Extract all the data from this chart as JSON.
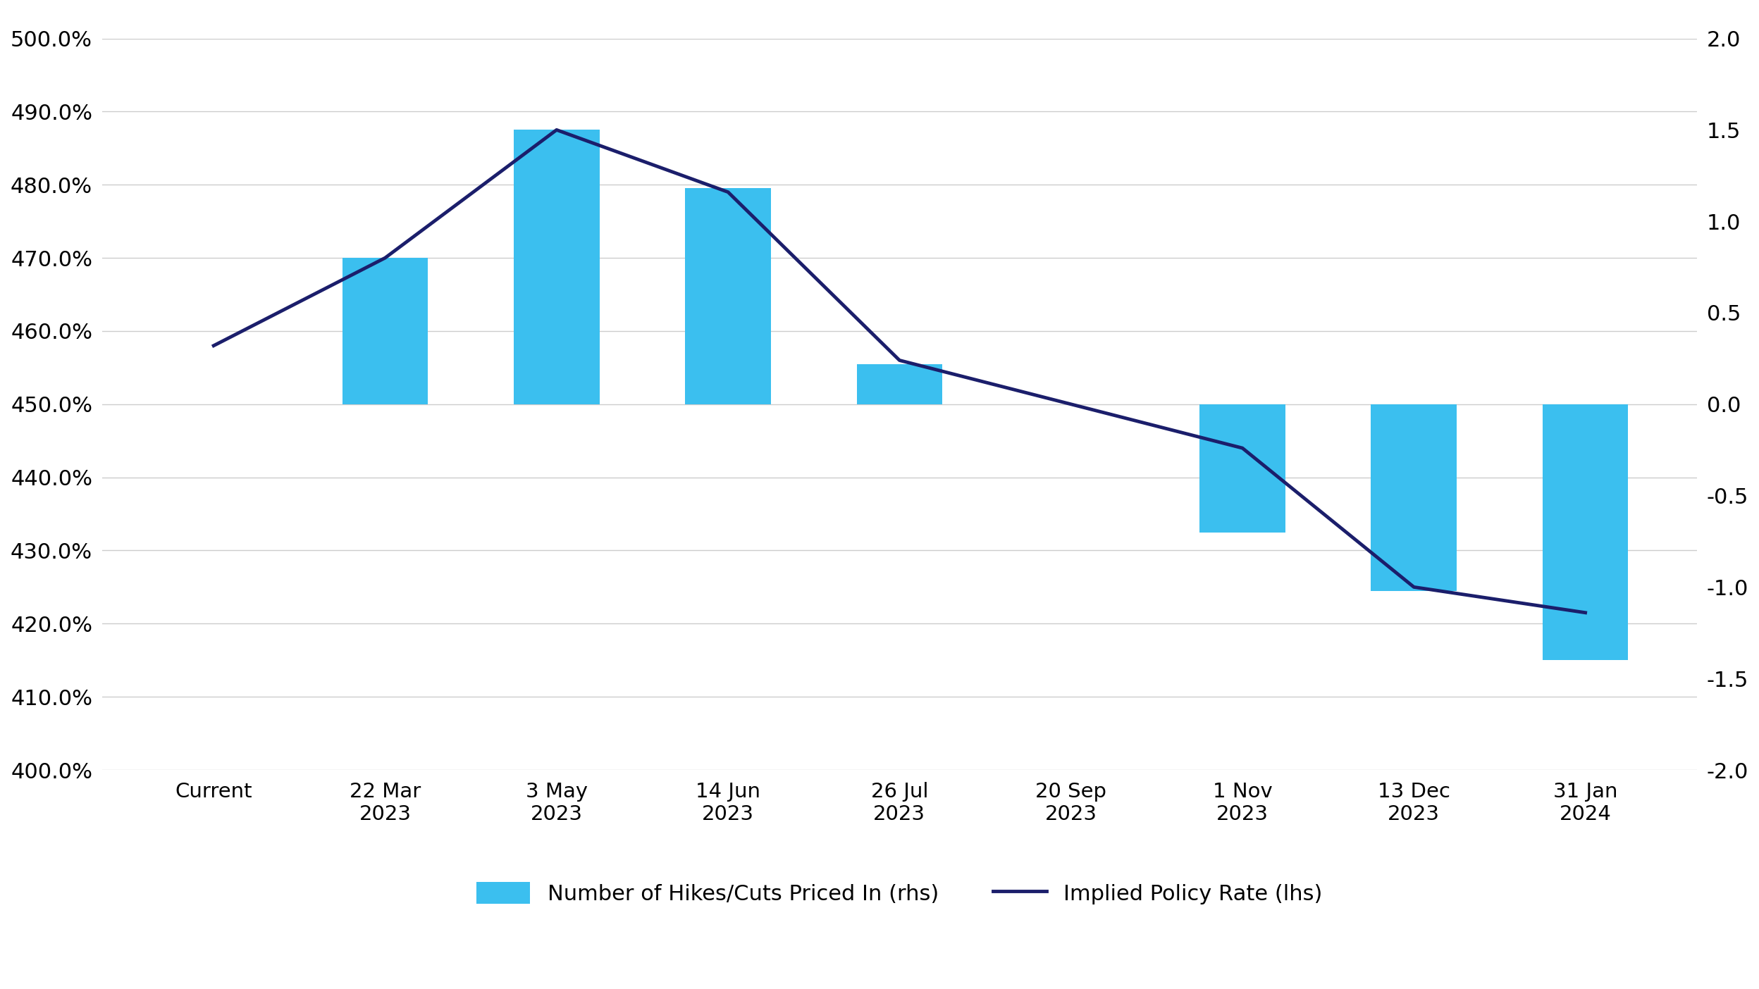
{
  "categories": [
    "Current",
    "22 Mar\n2023",
    "3 May\n2023",
    "14 Jun\n2023",
    "26 Jul\n2023",
    "20 Sep\n2023",
    "1 Nov\n2023",
    "13 Dec\n2023",
    "31 Jan\n2024"
  ],
  "bar_tops_lhs": [
    null,
    4.7,
    4.875,
    4.795,
    4.555,
    4.5,
    4.5,
    4.5,
    4.5
  ],
  "bar_bottoms_lhs": [
    null,
    4.5,
    4.5,
    4.5,
    4.5,
    4.5,
    4.325,
    4.245,
    4.15
  ],
  "line_values": [
    4.58,
    4.7,
    4.875,
    4.79,
    4.56,
    4.5,
    4.44,
    4.25,
    4.215
  ],
  "bar_rhs_values": [
    null,
    0.5,
    1.85,
    1.45,
    0.2,
    0.0,
    -0.6,
    -0.65,
    -1.35
  ],
  "bar_color": "#3BBFEF",
  "line_color": "#1B1E6B",
  "ylim_left": [
    4.0,
    5.0
  ],
  "ylim_right": [
    -2.0,
    2.0
  ],
  "yticks_left": [
    4.0,
    4.1,
    4.2,
    4.3,
    4.4,
    4.5,
    4.6,
    4.7,
    4.8,
    4.9,
    5.0
  ],
  "yticks_right": [
    -2.0,
    -1.5,
    -1.0,
    -0.5,
    0.0,
    0.5,
    1.0,
    1.5,
    2.0
  ],
  "legend_bar_label": "Number of Hikes/Cuts Priced In (rhs)",
  "legend_line_label": "Implied Policy Rate (lhs)",
  "background_color": "#ffffff",
  "bar_width": 0.5,
  "grid_color": "#cccccc"
}
